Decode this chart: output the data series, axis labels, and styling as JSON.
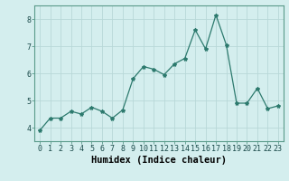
{
  "x": [
    0,
    1,
    2,
    3,
    4,
    5,
    6,
    7,
    8,
    9,
    10,
    11,
    12,
    13,
    14,
    15,
    16,
    17,
    18,
    19,
    20,
    21,
    22,
    23
  ],
  "y": [
    3.9,
    4.35,
    4.35,
    4.6,
    4.5,
    4.75,
    4.6,
    4.35,
    4.65,
    5.8,
    6.25,
    6.15,
    5.95,
    6.35,
    6.55,
    7.6,
    6.9,
    8.15,
    7.05,
    4.9,
    4.9,
    5.45,
    4.7,
    4.8
  ],
  "line_color": "#2d7a6e",
  "marker": "*",
  "marker_size": 3,
  "bg_color": "#d4eeee",
  "grid_color": "#b8d8d8",
  "xlabel": "Humidex (Indice chaleur)",
  "ylim": [
    3.5,
    8.5
  ],
  "xlim": [
    -0.5,
    23.5
  ],
  "yticks": [
    4,
    5,
    6,
    7,
    8
  ],
  "xticks": [
    0,
    1,
    2,
    3,
    4,
    5,
    6,
    7,
    8,
    9,
    10,
    11,
    12,
    13,
    14,
    15,
    16,
    17,
    18,
    19,
    20,
    21,
    22,
    23
  ],
  "tick_label_fontsize": 6,
  "xlabel_fontsize": 7.5
}
